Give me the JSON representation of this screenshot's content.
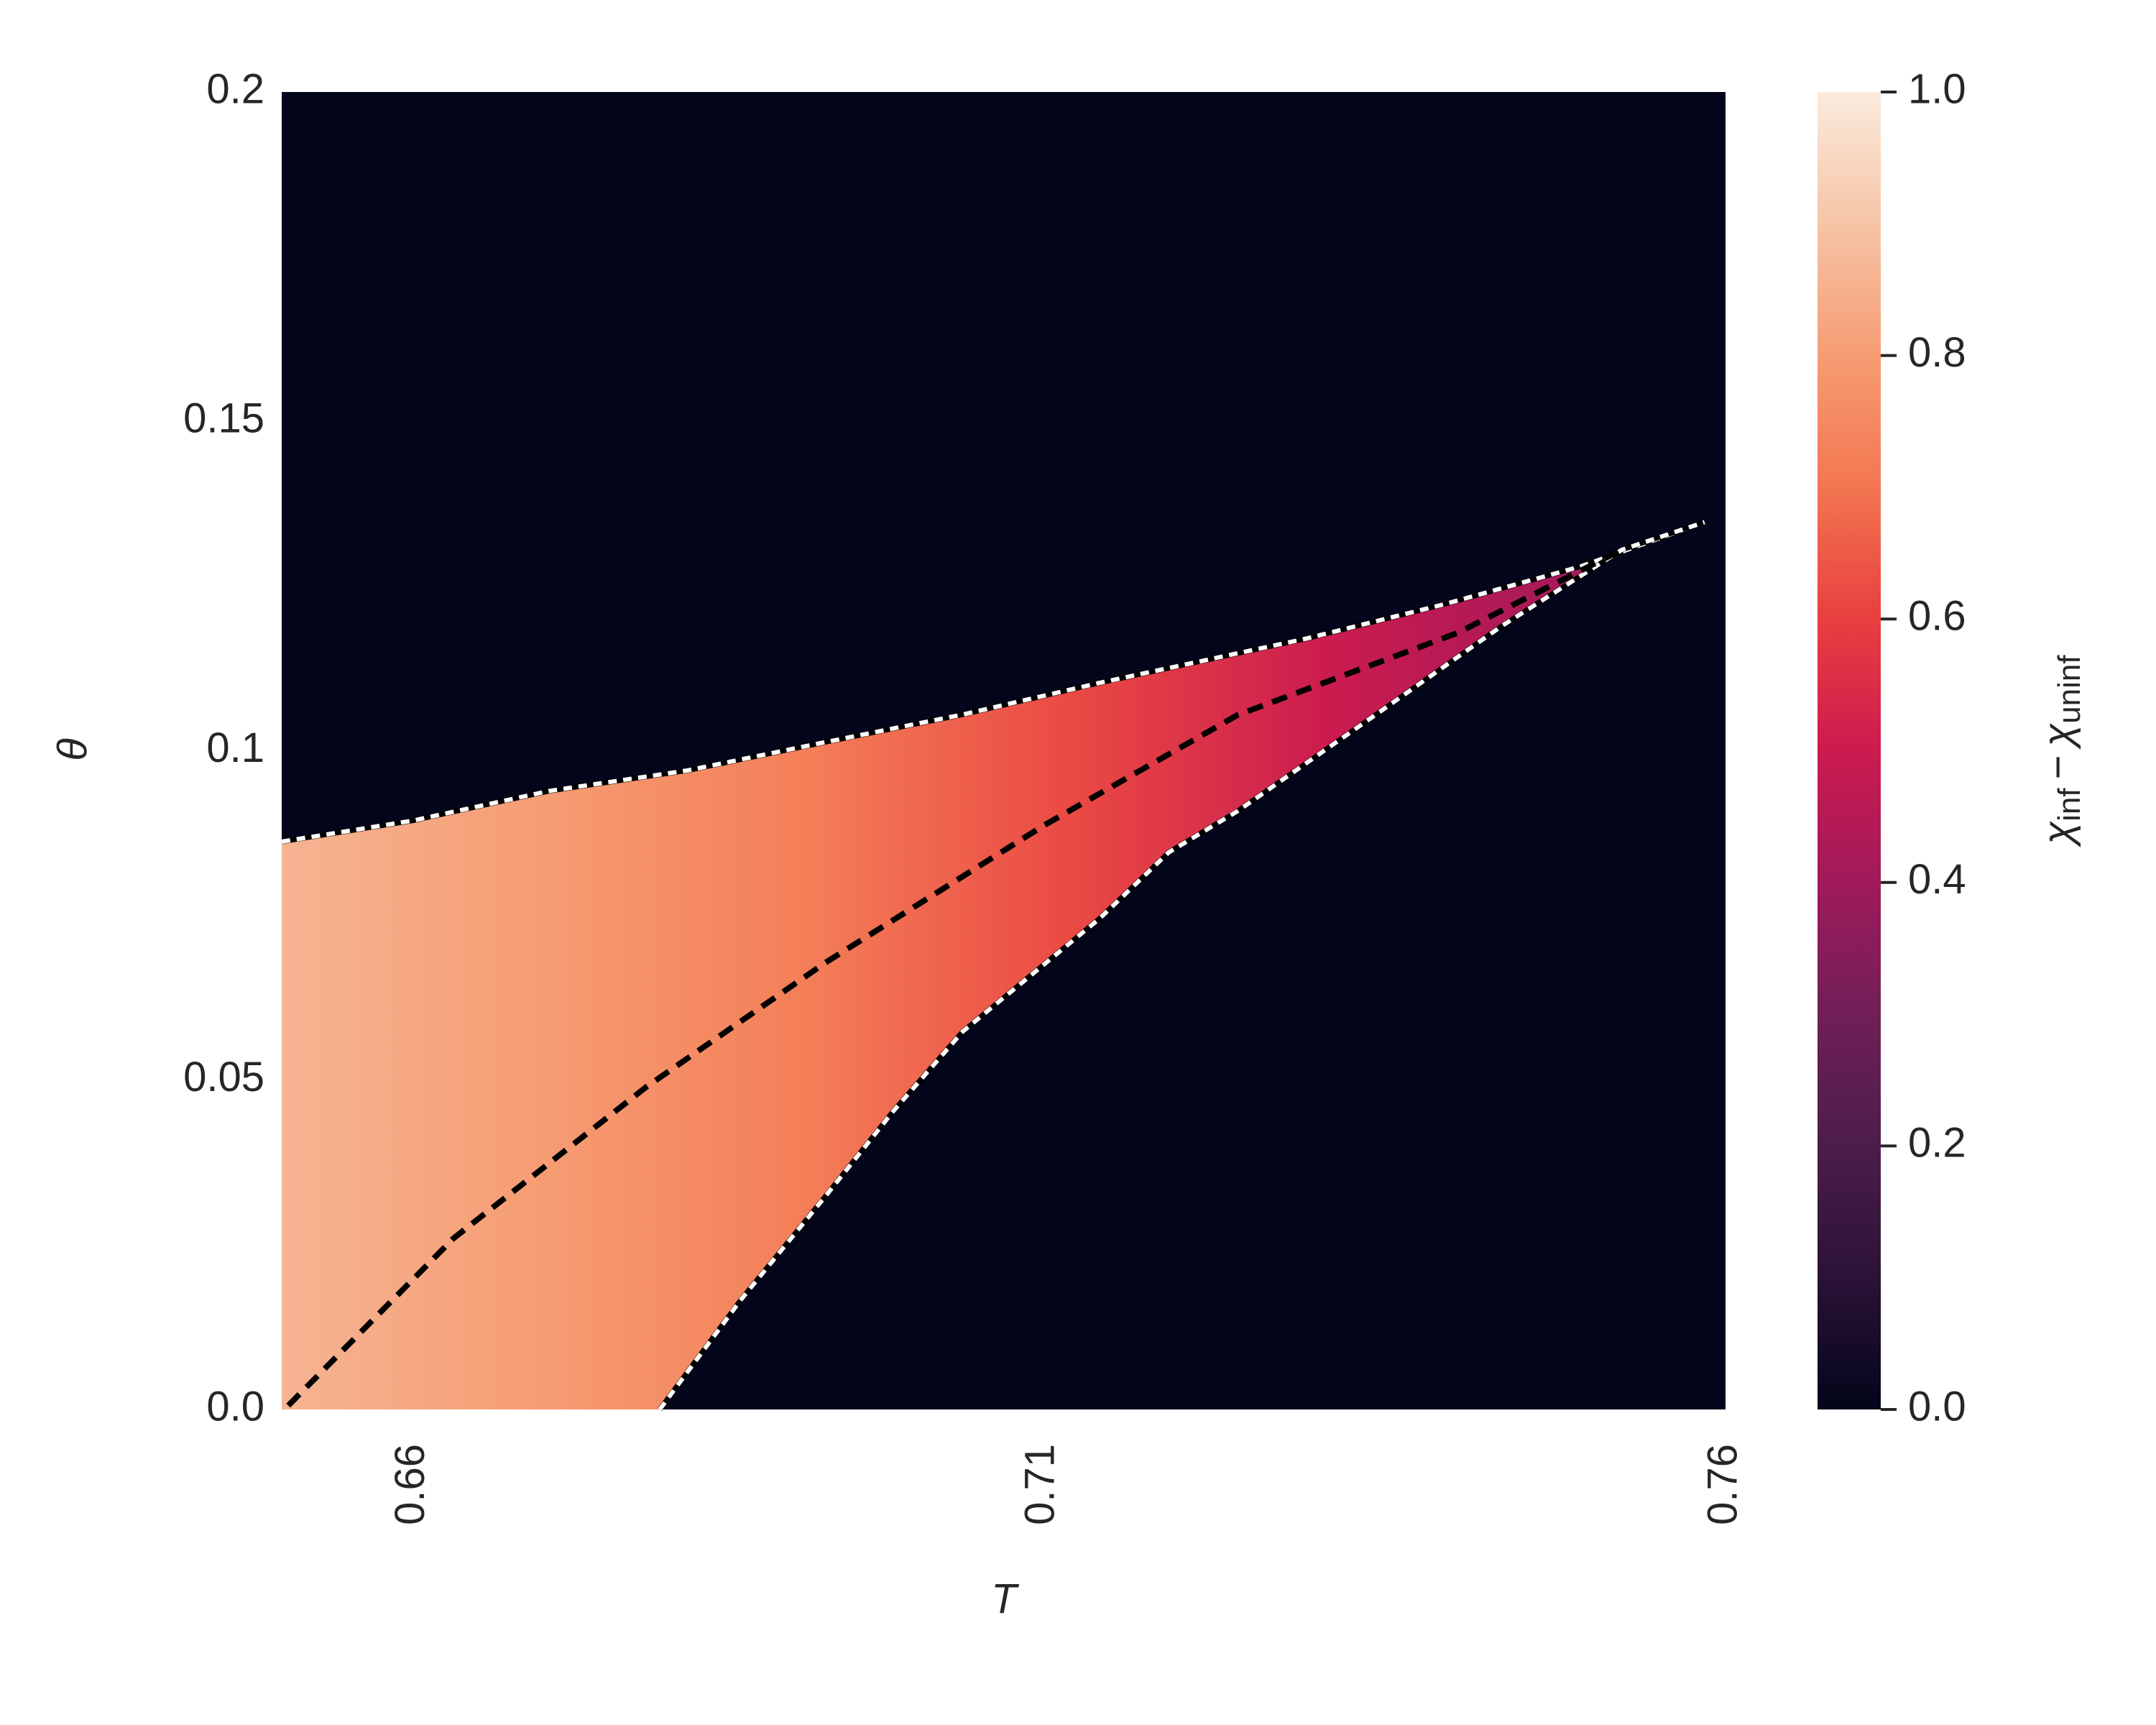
{
  "chart_data": {
    "type": "heatmap",
    "xlabel": "T",
    "ylabel": "θ",
    "xlim": [
      0.65,
      0.76
    ],
    "ylim": [
      0,
      0.2
    ],
    "xticks": [
      0.66,
      {
        "value": 0.708,
        "label": "0.71"
      },
      0.76
    ],
    "yticks": [
      {
        "value": 0,
        "label": "0.0"
      },
      0.05,
      0.1,
      0.15,
      0.2
    ],
    "colormap": [
      "#03051a",
      "#2b1237",
      "#4c1d4b",
      "#701f57",
      "#a11a5b",
      "#cb1b4f",
      "#e83f3f",
      "#f37651",
      "#f69c73",
      "#f6c4a6",
      "#faebdd"
    ],
    "clim": [
      0,
      1
    ],
    "colorbar": {
      "label": {
        "symbol": "χ",
        "operator": "−",
        "subscripts": [
          "inf",
          "uninf"
        ]
      },
      "ticks": [
        {
          "value": 0,
          "label": "0.0"
        },
        0.2,
        0.4,
        0.6,
        0.8,
        {
          "value": 1,
          "label": "1.0"
        }
      ]
    },
    "background_value": 0,
    "field": {
      "x": [
        0.65,
        0.67,
        0.69,
        0.71,
        0.73,
        0.75,
        0.76
      ],
      "values": [
        0.86,
        0.8,
        0.72,
        0.62,
        0.5,
        0.4,
        0.34
      ]
    },
    "series": [
      {
        "color": "#ffffff",
        "style": "dashed",
        "x": [
          0.65,
          0.66,
          0.6704,
          0.6809,
          0.6914,
          0.7019,
          0.7123,
          0.728,
          0.7385,
          0.749,
          0.7584
        ],
        "values": [
          0.0862,
          0.0894,
          0.0939,
          0.097,
          0.1013,
          0.1055,
          0.1103,
          0.117,
          0.1222,
          0.128,
          0.1347
        ]
      },
      {
        "color": "#ffffff",
        "style": "dashed",
        "x": [
          0.6788,
          0.685,
          0.6914,
          0.6966,
          0.7019,
          0.7123,
          0.7176,
          0.7228,
          0.7333,
          0.743,
          0.7521,
          0.7584
        ],
        "values": [
          0,
          0.0167,
          0.0323,
          0.0453,
          0.0574,
          0.0745,
          0.0846,
          0.0908,
          0.1054,
          0.119,
          0.1305,
          0.1347
        ]
      },
      {
        "color": "#000000",
        "style": "dashed",
        "x": [
          0.6505,
          0.6631,
          0.6778,
          0.6914,
          0.7081,
          0.7228,
          0.7396,
          0.7521
        ],
        "values": [
          0.0006,
          0.026,
          0.049,
          0.0678,
          0.0887,
          0.1054,
          0.1179,
          0.1305
        ]
      }
    ]
  }
}
